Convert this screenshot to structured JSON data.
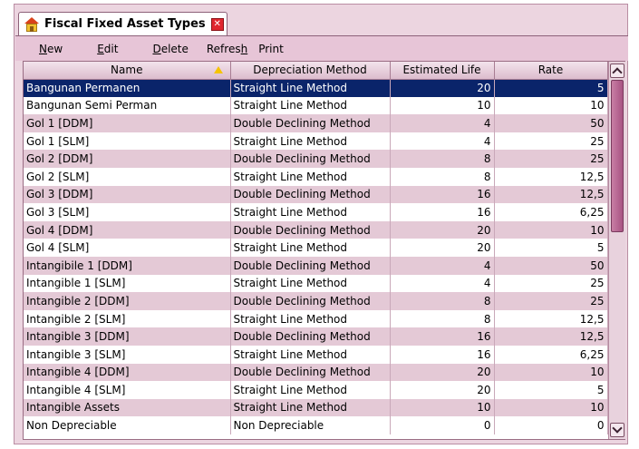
{
  "tab": {
    "title": "Fiscal Fixed Asset Types",
    "close_glyph": "✕"
  },
  "toolbar": [
    {
      "key": "N",
      "rest": "ew",
      "pre": ""
    },
    {
      "key": "E",
      "rest": "dit",
      "pre": ""
    },
    {
      "key": "D",
      "rest": "elete",
      "pre": ""
    },
    {
      "key": "h",
      "rest": "",
      "pre": "Refres"
    },
    {
      "key": "",
      "rest": "Print",
      "pre": ""
    }
  ],
  "columns": [
    "Name",
    "Depreciation Method",
    "Estimated Life",
    "Rate"
  ],
  "rows": [
    [
      "Bangunan Permanen",
      "Straight Line Method",
      "20",
      "5"
    ],
    [
      "Bangunan Semi Perman",
      "Straight Line Method",
      "10",
      "10"
    ],
    [
      "Gol 1 [DDM]",
      "Double Declining Method",
      "4",
      "50"
    ],
    [
      "Gol 1 [SLM]",
      "Straight Line Method",
      "4",
      "25"
    ],
    [
      "Gol 2 [DDM]",
      "Double Declining Method",
      "8",
      "25"
    ],
    [
      "Gol 2 [SLM]",
      "Straight Line Method",
      "8",
      "12,5"
    ],
    [
      "Gol 3 [DDM]",
      "Double Declining Method",
      "16",
      "12,5"
    ],
    [
      "Gol 3 [SLM]",
      "Straight Line Method",
      "16",
      "6,25"
    ],
    [
      "Gol 4 [DDM]",
      "Double Declining Method",
      "20",
      "10"
    ],
    [
      "Gol 4 [SLM]",
      "Straight Line Method",
      "20",
      "5"
    ],
    [
      "Intangibile 1 [DDM]",
      "Double Declining Method",
      "4",
      "50"
    ],
    [
      "Intangible 1 [SLM]",
      "Straight Line Method",
      "4",
      "25"
    ],
    [
      "Intangible 2 [DDM]",
      "Double Declining Method",
      "8",
      "25"
    ],
    [
      "Intangible 2 [SLM]",
      "Straight Line Method",
      "8",
      "12,5"
    ],
    [
      "Intangible 3 [DDM]",
      "Double Declining Method",
      "16",
      "12,5"
    ],
    [
      "Intangible 3 [SLM]",
      "Straight Line Method",
      "16",
      "6,25"
    ],
    [
      "Intangible 4 [DDM]",
      "Double Declining Method",
      "20",
      "10"
    ],
    [
      "Intangible 4 [SLM]",
      "Straight Line Method",
      "20",
      "5"
    ],
    [
      "Intangible Assets",
      "Straight Line Method",
      "10",
      "10"
    ],
    [
      "Non Depreciable",
      "Non Depreciable",
      "0",
      "0"
    ]
  ],
  "selected_row": 0,
  "colors": {
    "selection": "#0a246a",
    "alt_row": "#e4c9d6",
    "chrome": "#ecd5e0"
  },
  "icons": {
    "tab": "house-icon",
    "close": "close-icon",
    "sort": "sort-ascending-icon"
  }
}
